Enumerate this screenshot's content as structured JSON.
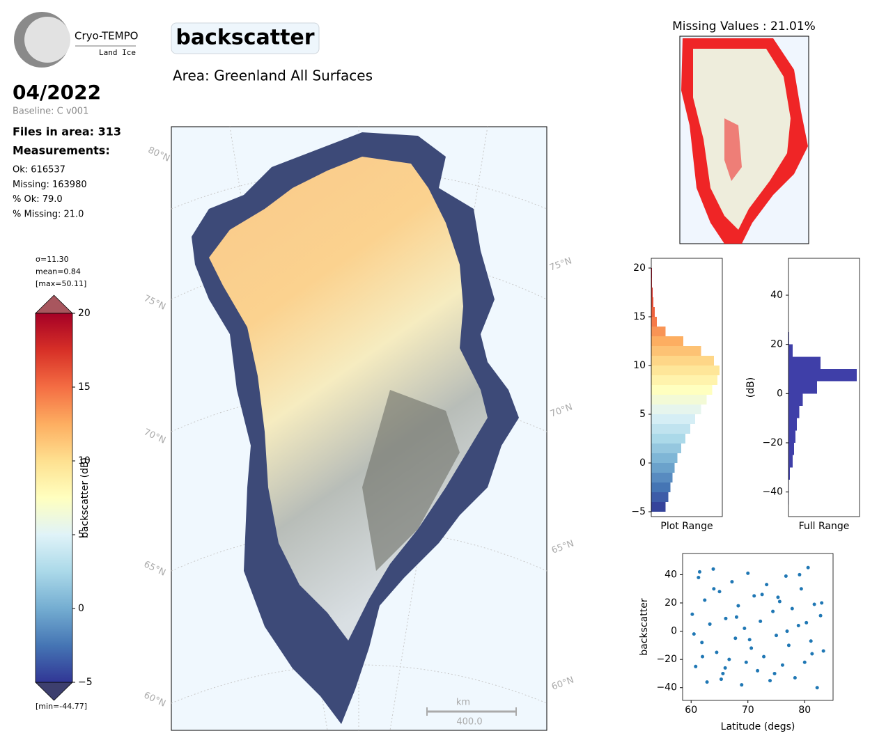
{
  "logo": {
    "name": "Cryo-TEMPO",
    "subtitle": "Land Ice"
  },
  "date": "04/2022",
  "baseline": "Baseline: C v001",
  "title": "backscatter",
  "area": "Area: Greenland All Surfaces",
  "stats": {
    "files": "Files in area: 313",
    "measurements": "Measurements:",
    "lines": [
      "Ok: 616537",
      "Missing: 163980",
      "% Ok: 79.0",
      "% Missing: 21.0"
    ]
  },
  "colorbar": {
    "stats": [
      "σ=11.30",
      "mean=0.84",
      "[max=50.11]"
    ],
    "min_label": "[min=-44.77]",
    "label": "backscatter (dB)",
    "lim": [
      -5,
      20
    ],
    "ticks": [
      {
        "value": -5,
        "label": "−5"
      },
      0,
      5,
      10,
      15,
      20
    ],
    "colors": [
      "#313695",
      "#4575b4",
      "#74add1",
      "#abd9e9",
      "#e0f3f8",
      "#ffffbf",
      "#fee090",
      "#fdae61",
      "#f46d43",
      "#d73027",
      "#a50026"
    ]
  },
  "map": {
    "lat_labels_left": [
      "80°N",
      "75°N",
      "70°N",
      "65°N",
      "60°N"
    ],
    "lat_labels_right": [
      "75°N",
      "70°N",
      "65°N",
      "60°N"
    ],
    "scale_unit": "km",
    "scale_label": "400.0"
  },
  "missing_map": {
    "title": "Missing Values : 21.01%"
  },
  "chart_data": [
    {
      "type": "histogram",
      "orientation": "horizontal",
      "xlabel": "Plot Range",
      "colormap": true,
      "bins": [
        -5,
        -4,
        -3,
        -2,
        -1,
        0,
        1,
        2,
        3,
        4,
        5,
        6,
        7,
        8,
        9,
        10,
        11,
        12,
        13,
        14,
        15,
        16,
        17,
        18,
        19,
        20
      ],
      "values": [
        20,
        24,
        27,
        30,
        33,
        37,
        42,
        48,
        55,
        62,
        70,
        78,
        86,
        93,
        96,
        88,
        70,
        45,
        20,
        8,
        5,
        3,
        2,
        1,
        1
      ],
      "xlim": [
        0,
        100
      ],
      "ylim": [
        -5.5,
        21
      ],
      "yticks": [
        {
          "value": -5,
          "label": "−5"
        },
        0,
        5,
        10,
        15,
        20
      ]
    },
    {
      "type": "histogram",
      "orientation": "horizontal",
      "xlabel": "Full Range",
      "ylabel": "(dB)",
      "color": "#3f3fa8",
      "bins": [
        -45,
        -40,
        -35,
        -30,
        -25,
        -20,
        -15,
        -10,
        -5,
        0,
        5,
        10,
        15,
        20,
        25
      ],
      "values": [
        0.5,
        0.5,
        2,
        6,
        8,
        10,
        12,
        15,
        20,
        40,
        96,
        45,
        6,
        1
      ],
      "xlim": [
        0,
        100
      ],
      "ylim": [
        -50,
        55
      ],
      "yticks": [
        {
          "value": -40,
          "label": "−40"
        },
        {
          "value": -20,
          "label": "−20"
        },
        0,
        20,
        40
      ]
    },
    {
      "type": "scatter",
      "xlabel": "Latitude (degs)",
      "ylabel": "backscatter",
      "color": "#1f77b4",
      "x": [
        60.2,
        60.8,
        61.3,
        61.9,
        62.4,
        62.8,
        63.3,
        63.9,
        64.5,
        65.0,
        65.6,
        66.1,
        66.7,
        67.2,
        67.8,
        68.3,
        68.9,
        69.4,
        70.0,
        70.6,
        71.1,
        71.7,
        72.2,
        72.8,
        73.3,
        73.9,
        74.4,
        75.0,
        75.6,
        76.1,
        76.7,
        77.2,
        77.8,
        78.3,
        78.9,
        79.4,
        80.0,
        80.6,
        81.1,
        81.7,
        82.2,
        82.8,
        83.3,
        60.5,
        62.0,
        64.0,
        66.0,
        68.0,
        70.3,
        72.5,
        74.7,
        76.9,
        79.1,
        81.3,
        83.0,
        61.5,
        65.3,
        69.7,
        75.3,
        80.3
      ],
      "y": [
        12,
        -25,
        38,
        -8,
        22,
        -36,
        5,
        44,
        -15,
        28,
        -30,
        9,
        -20,
        35,
        -5,
        18,
        -38,
        2,
        41,
        -12,
        25,
        -28,
        7,
        -18,
        33,
        -35,
        14,
        -3,
        21,
        -24,
        39,
        -10,
        16,
        -33,
        4,
        30,
        -22,
        45,
        -7,
        19,
        -40,
        11,
        -14,
        -2,
        -18,
        30,
        -26,
        10,
        -6,
        26,
        -30,
        0,
        40,
        -16,
        20,
        42,
        -34,
        -22,
        24,
        6
      ],
      "xlim": [
        58.5,
        85
      ],
      "ylim": [
        -49,
        55
      ],
      "xticks": [
        60,
        70,
        80
      ],
      "yticks": [
        {
          "value": -40,
          "label": "−40"
        },
        {
          "value": -20,
          "label": "−20"
        },
        0,
        20,
        40
      ]
    }
  ]
}
